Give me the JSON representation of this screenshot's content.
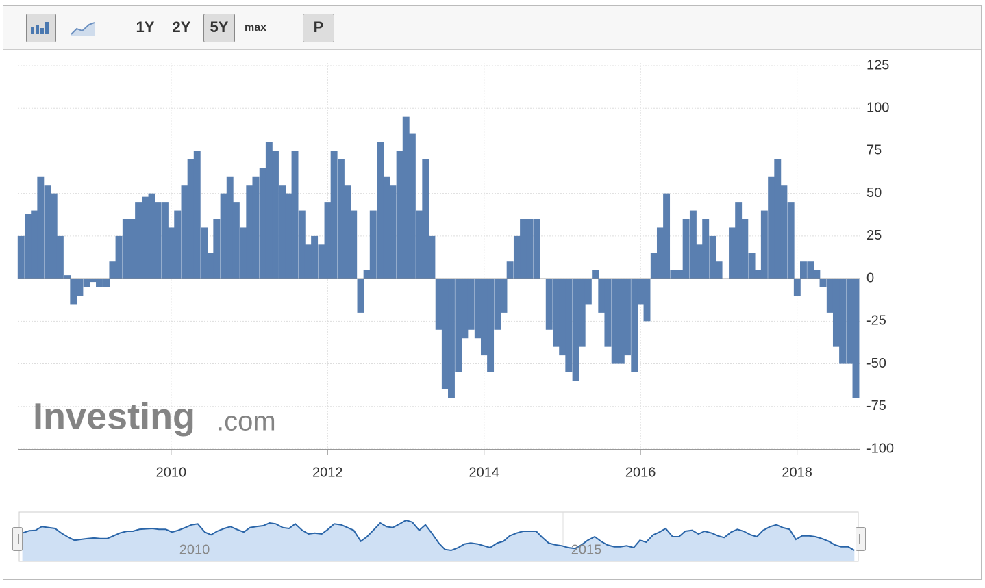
{
  "toolbar": {
    "buttons": [
      "1Y",
      "2Y",
      "5Y",
      "max",
      "P"
    ],
    "active": [
      "5Y"
    ]
  },
  "watermark": [
    "Investing",
    ".com"
  ],
  "navigator": {
    "labels": [
      "2010",
      "2015"
    ]
  },
  "chart_data": {
    "type": "bar",
    "color": "#5a7fb0",
    "grid": true,
    "y_axis_side": "right",
    "x": [
      2008.08,
      2008.17,
      2008.25,
      2008.33,
      2008.42,
      2008.5,
      2008.58,
      2008.67,
      2008.75,
      2008.83,
      2008.92,
      2009.0,
      2009.08,
      2009.17,
      2009.25,
      2009.33,
      2009.42,
      2009.5,
      2009.58,
      2009.67,
      2009.75,
      2009.83,
      2009.92,
      2010.0,
      2010.08,
      2010.17,
      2010.25,
      2010.33,
      2010.42,
      2010.5,
      2010.58,
      2010.67,
      2010.75,
      2010.83,
      2010.92,
      2011.0,
      2011.08,
      2011.17,
      2011.25,
      2011.33,
      2011.42,
      2011.5,
      2011.58,
      2011.67,
      2011.75,
      2011.83,
      2011.92,
      2012.0,
      2012.08,
      2012.17,
      2012.25,
      2012.33,
      2012.42,
      2012.5,
      2012.58,
      2012.67,
      2012.75,
      2012.83,
      2012.92,
      2013.0,
      2013.08,
      2013.17,
      2013.25,
      2013.33,
      2013.42,
      2013.5,
      2013.58,
      2013.67,
      2013.75,
      2013.83,
      2013.92,
      2014.0,
      2014.08,
      2014.17,
      2014.25,
      2014.33,
      2014.42,
      2014.5,
      2014.58,
      2014.67,
      2014.75,
      2014.83,
      2014.92,
      2015.0,
      2015.08,
      2015.17,
      2015.25,
      2015.33,
      2015.42,
      2015.5,
      2015.58,
      2015.67,
      2015.75,
      2015.83,
      2015.92,
      2016.0,
      2016.08,
      2016.17,
      2016.25,
      2016.33,
      2016.42,
      2016.5,
      2016.58,
      2016.67,
      2016.75,
      2016.83,
      2016.92,
      2017.0,
      2017.08,
      2017.17,
      2017.25,
      2017.33,
      2017.42,
      2017.5,
      2017.58,
      2017.67,
      2017.75,
      2017.83,
      2017.92,
      2018.0,
      2018.08,
      2018.17,
      2018.25,
      2018.33,
      2018.42,
      2018.5,
      2018.58,
      2018.67,
      2018.75
    ],
    "series": [
      {
        "values": [
          25,
          38,
          40,
          60,
          55,
          50,
          25,
          2,
          -15,
          -10,
          -5,
          -2,
          -5,
          -5,
          10,
          25,
          35,
          35,
          45,
          48,
          50,
          45,
          45,
          30,
          40,
          55,
          70,
          75,
          30,
          15,
          35,
          50,
          60,
          45,
          30,
          55,
          60,
          65,
          80,
          75,
          55,
          50,
          75,
          40,
          20,
          25,
          20,
          45,
          75,
          70,
          55,
          40,
          -20,
          5,
          40,
          80,
          60,
          55,
          75,
          95,
          85,
          40,
          70,
          25,
          -30,
          -65,
          -70,
          -55,
          -35,
          -30,
          -35,
          -45,
          -55,
          -30,
          -20,
          10,
          25,
          35,
          35,
          35,
          0,
          -30,
          -40,
          -45,
          -55,
          -60,
          -40,
          -15,
          5,
          -20,
          -40,
          -50,
          -50,
          -45,
          -55,
          -15,
          -25,
          15,
          30,
          50,
          5,
          5,
          35,
          40,
          20,
          35,
          25,
          10,
          0,
          30,
          45,
          35,
          15,
          5,
          40,
          60,
          70,
          55,
          45,
          -10,
          10,
          10,
          5,
          -5,
          -20,
          -40,
          -50,
          -50,
          -70
        ]
      }
    ],
    "xlim": [
      2008.04,
      2018.8
    ],
    "xticks": [
      2010,
      2012,
      2014,
      2016,
      2018
    ],
    "ylim": [
      -100,
      125
    ],
    "yticks": [
      125,
      100,
      75,
      50,
      25,
      0,
      -25,
      -50,
      -75,
      -100
    ]
  }
}
